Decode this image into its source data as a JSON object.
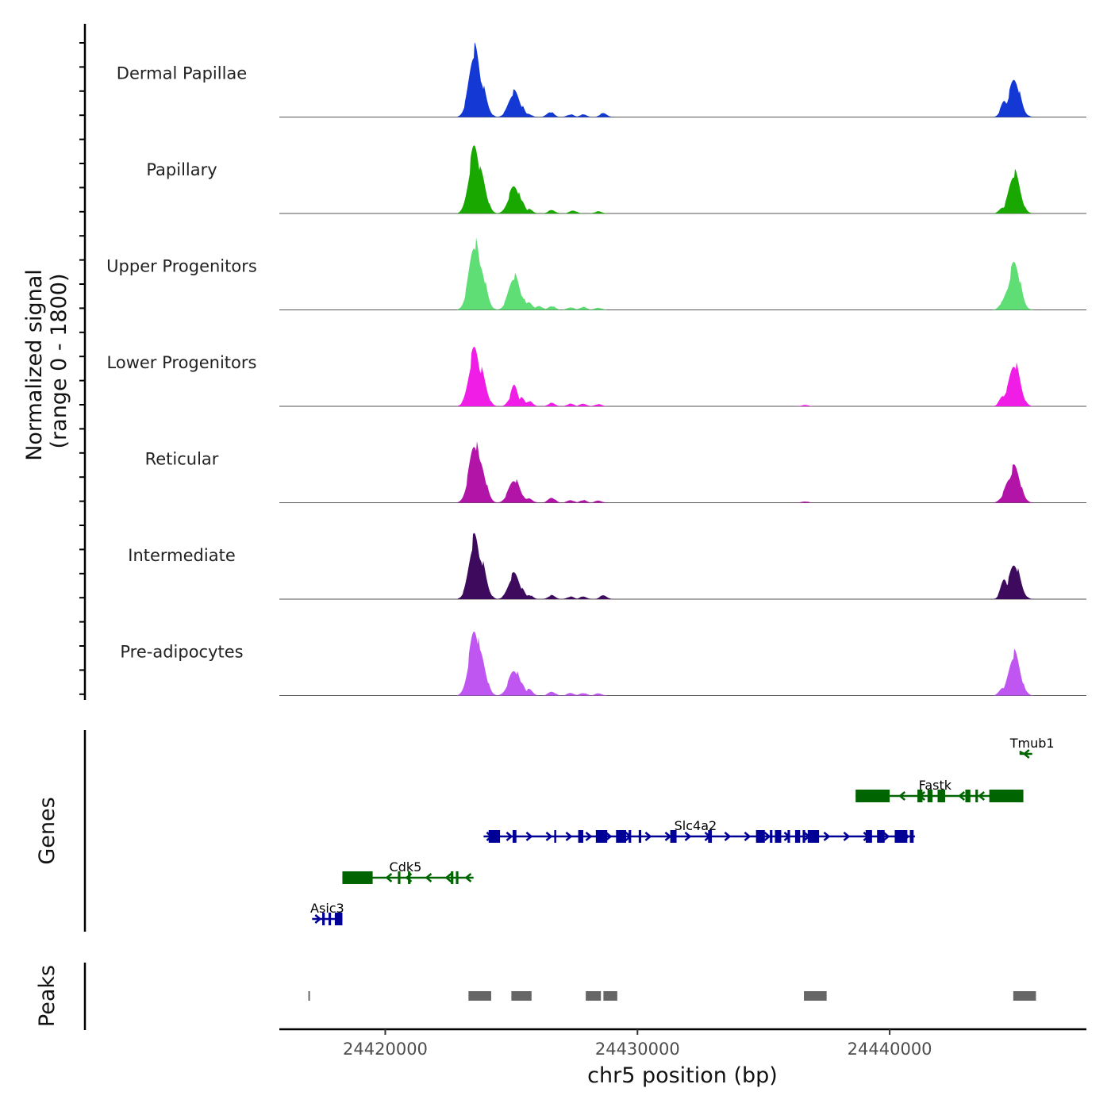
{
  "chart_data": {
    "type": "area",
    "title": "",
    "xlabel": "chr5 position (bp)",
    "ylabel": "Normalized signal",
    "ylabel_sub": "(range 0 - 1800)",
    "xlim": [
      24415800,
      24447800
    ],
    "ylim": [
      0,
      1800
    ],
    "x_ticks": [
      24420000,
      24430000,
      24440000
    ],
    "x_tick_labels": [
      "24420000",
      "24430000",
      "24440000"
    ],
    "tracks": [
      {
        "name": "Dermal Papillae",
        "color": "#1438d4",
        "peaks": [
          [
            24423300,
            180
          ],
          [
            24423550,
            1600
          ],
          [
            24423750,
            900
          ],
          [
            24425000,
            280
          ],
          [
            24425120,
            600
          ],
          [
            24425380,
            280
          ],
          [
            24425650,
            80
          ],
          [
            24426550,
            120
          ],
          [
            24427350,
            60
          ],
          [
            24427850,
            60
          ],
          [
            24428650,
            90
          ],
          [
            24444550,
            380
          ],
          [
            24444800,
            300
          ],
          [
            24444950,
            880
          ],
          [
            24445300,
            120
          ]
        ]
      },
      {
        "name": "Papillary",
        "color": "#19a800",
        "peaks": [
          [
            24423300,
            250
          ],
          [
            24423550,
            1600
          ],
          [
            24423750,
            1000
          ],
          [
            24425000,
            300
          ],
          [
            24425120,
            650
          ],
          [
            24425400,
            300
          ],
          [
            24425700,
            100
          ],
          [
            24426600,
            80
          ],
          [
            24427450,
            70
          ],
          [
            24428450,
            50
          ],
          [
            24444500,
            150
          ],
          [
            24444800,
            420
          ],
          [
            24444950,
            950
          ],
          [
            24445300,
            120
          ]
        ]
      },
      {
        "name": "Upper Progenitors",
        "color": "#5ede74",
        "peaks": [
          [
            24423300,
            250
          ],
          [
            24423550,
            1600
          ],
          [
            24423750,
            1050
          ],
          [
            24425000,
            300
          ],
          [
            24425120,
            800
          ],
          [
            24425400,
            350
          ],
          [
            24425700,
            180
          ],
          [
            24426100,
            90
          ],
          [
            24426600,
            90
          ],
          [
            24427350,
            60
          ],
          [
            24427850,
            70
          ],
          [
            24428450,
            50
          ],
          [
            24444500,
            200
          ],
          [
            24444800,
            600
          ],
          [
            24444950,
            1100
          ],
          [
            24445300,
            130
          ]
        ]
      },
      {
        "name": "Lower Progenitors",
        "color": "#f01de6",
        "peaks": [
          [
            24423300,
            200
          ],
          [
            24423550,
            1350
          ],
          [
            24423750,
            900
          ],
          [
            24425000,
            220
          ],
          [
            24425120,
            500
          ],
          [
            24425400,
            200
          ],
          [
            24425700,
            120
          ],
          [
            24426600,
            80
          ],
          [
            24427350,
            60
          ],
          [
            24427850,
            60
          ],
          [
            24428450,
            50
          ],
          [
            24436650,
            30
          ],
          [
            24444500,
            250
          ],
          [
            24444800,
            520
          ],
          [
            24444950,
            1000
          ],
          [
            24445300,
            130
          ]
        ]
      },
      {
        "name": "Reticular",
        "color": "#b314a8",
        "peaks": [
          [
            24423300,
            200
          ],
          [
            24423550,
            1400
          ],
          [
            24423750,
            950
          ],
          [
            24425000,
            250
          ],
          [
            24425120,
            550
          ],
          [
            24425400,
            200
          ],
          [
            24425700,
            100
          ],
          [
            24426600,
            120
          ],
          [
            24427350,
            60
          ],
          [
            24427850,
            60
          ],
          [
            24428450,
            50
          ],
          [
            24436650,
            30
          ],
          [
            24444500,
            150
          ],
          [
            24444800,
            600
          ],
          [
            24444950,
            850
          ],
          [
            24445300,
            120
          ]
        ]
      },
      {
        "name": "Intermediate",
        "color": "#3d0a5e",
        "peaks": [
          [
            24423300,
            200
          ],
          [
            24423550,
            1450
          ],
          [
            24423750,
            1000
          ],
          [
            24425000,
            250
          ],
          [
            24425120,
            600
          ],
          [
            24425400,
            250
          ],
          [
            24425700,
            100
          ],
          [
            24426600,
            90
          ],
          [
            24427350,
            60
          ],
          [
            24427850,
            60
          ],
          [
            24428650,
            90
          ],
          [
            24444550,
            480
          ],
          [
            24444950,
            820
          ],
          [
            24445300,
            90
          ]
        ]
      },
      {
        "name": "Pre-adipocytes",
        "color": "#c056f2",
        "peaks": [
          [
            24423300,
            250
          ],
          [
            24423550,
            1550
          ],
          [
            24423750,
            1000
          ],
          [
            24425000,
            250
          ],
          [
            24425120,
            600
          ],
          [
            24425400,
            300
          ],
          [
            24425700,
            150
          ],
          [
            24426600,
            90
          ],
          [
            24427350,
            60
          ],
          [
            24427850,
            60
          ],
          [
            24428450,
            50
          ],
          [
            24444500,
            200
          ],
          [
            24444800,
            450
          ],
          [
            24444950,
            1000
          ],
          [
            24445300,
            150
          ]
        ]
      }
    ],
    "genes": [
      {
        "name": "Tmub1",
        "row": 0,
        "strand": "-",
        "color": "#006400",
        "start": 24445150,
        "end": 24445650,
        "exons": [],
        "label_at": 24445650
      },
      {
        "name": "Fastk",
        "row": 1,
        "strand": "-",
        "color": "#006400",
        "start": 24438650,
        "end": 24445300,
        "exons": [
          [
            24438650,
            24440000
          ],
          [
            24441100,
            24441300
          ],
          [
            24441500,
            24441700
          ],
          [
            24441900,
            24442200
          ],
          [
            24443000,
            24443200
          ],
          [
            24443400,
            24443500
          ],
          [
            24443950,
            24445300
          ]
        ],
        "label_at": 24441800
      },
      {
        "name": "Slc4a2",
        "row": 2,
        "strand": "+",
        "color": "#000096",
        "start": 24423900,
        "end": 24441000,
        "exons": [
          [
            24424100,
            24424550
          ],
          [
            24425050,
            24425200
          ],
          [
            24426700,
            24426720
          ],
          [
            24427650,
            24427850
          ],
          [
            24428350,
            24428800
          ],
          [
            24429150,
            24429550
          ],
          [
            24429650,
            24429750
          ],
          [
            24430050,
            24430150
          ],
          [
            24431300,
            24431550
          ],
          [
            24432800,
            24432950
          ],
          [
            24434700,
            24435050
          ],
          [
            24435250,
            24435350
          ],
          [
            24435450,
            24435700
          ],
          [
            24435950,
            24436050
          ],
          [
            24436250,
            24436450
          ],
          [
            24436550,
            24436650
          ],
          [
            24436750,
            24437200
          ],
          [
            24439050,
            24439300
          ],
          [
            24439500,
            24439800
          ],
          [
            24440200,
            24440700
          ],
          [
            24440800,
            24440950
          ]
        ],
        "label_at": 24432300
      },
      {
        "name": "Cdk5",
        "row": 3,
        "strand": "-",
        "color": "#006400",
        "start": 24418300,
        "end": 24423500,
        "exons": [
          [
            24418300,
            24419500
          ],
          [
            24420500,
            24420600
          ],
          [
            24420900,
            24421000
          ],
          [
            24422600,
            24422700
          ],
          [
            24422800,
            24422900
          ]
        ],
        "label_at": 24420800
      },
      {
        "name": "Asic3",
        "row": 4,
        "strand": "+",
        "color": "#000096",
        "start": 24417100,
        "end": 24418300,
        "exons": [
          [
            24417500,
            24417600
          ],
          [
            24417750,
            24417850
          ],
          [
            24418000,
            24418300
          ]
        ],
        "label_at": 24417700
      }
    ],
    "peaks_track": {
      "label": "Peaks",
      "color": "#666666",
      "intervals": [
        [
          24416950,
          24417000
        ],
        [
          24423300,
          24424200
        ],
        [
          24425000,
          24425800
        ],
        [
          24427950,
          24428550
        ],
        [
          24428650,
          24429200
        ],
        [
          24436600,
          24437500
        ],
        [
          24444900,
          24445800
        ]
      ]
    },
    "panel_labels": {
      "genes": "Genes",
      "peaks": "Peaks"
    }
  }
}
